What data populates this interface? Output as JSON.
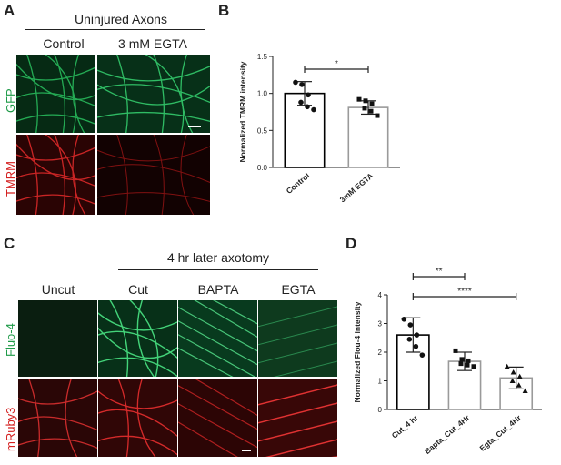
{
  "panelA": {
    "letter": "A",
    "group_title": "Uninjured Axons",
    "col_labels": [
      "Control",
      "3 mM EGTA"
    ],
    "row_labels": [
      "GFP",
      "TMRM"
    ],
    "colors": {
      "green": "#1fbf5a",
      "red": "#ff2a2a"
    }
  },
  "panelB": {
    "letter": "B"
  },
  "panelC": {
    "letter": "C",
    "group_title": "4 hr later axotomy",
    "col_labels": [
      "Uncut",
      "Cut",
      "BAPTA",
      "EGTA"
    ],
    "row_labels": [
      "Fluo-4",
      "mRuby3"
    ]
  },
  "panelD": {
    "letter": "D"
  },
  "chart_data": [
    {
      "type": "bar",
      "categories": [
        "Control",
        "3mM EGTA"
      ],
      "values": [
        1.0,
        0.81
      ],
      "errors": [
        0.16,
        0.09
      ],
      "points": [
        [
          1.15,
          1.12,
          0.98,
          0.88,
          0.82,
          0.78
        ],
        [
          0.92,
          0.9,
          0.86,
          0.8,
          0.76,
          0.7
        ]
      ],
      "ylabel": "Normalized TMRM intensity",
      "ylim": [
        0,
        1.5
      ],
      "yticks": [
        "0.0",
        "0.5",
        "1.0",
        "1.5"
      ],
      "significance": [
        {
          "from": 0,
          "to": 1,
          "label": "*"
        }
      ],
      "bar_colors": [
        "#000000",
        "#9a9a9a"
      ]
    },
    {
      "type": "bar",
      "categories": [
        "Cut_4 hr",
        "Bapta_Cut_4Hr",
        "Egta_Cut_4Hr"
      ],
      "values": [
        2.6,
        1.68,
        1.1
      ],
      "errors": [
        0.6,
        0.32,
        0.38
      ],
      "points": [
        [
          3.15,
          2.95,
          2.6,
          2.45,
          2.2,
          1.9
        ],
        [
          2.05,
          1.75,
          1.7,
          1.6,
          1.55,
          1.5
        ],
        [
          1.5,
          1.3,
          1.15,
          1.0,
          0.85,
          0.65
        ]
      ],
      "ylabel": "Normalized Flou-4 intensity",
      "ylim": [
        0,
        4
      ],
      "yticks": [
        "0",
        "1",
        "2",
        "3",
        "4"
      ],
      "significance": [
        {
          "from": 0,
          "to": 1,
          "label": "**"
        },
        {
          "from": 0,
          "to": 2,
          "label": "****"
        }
      ],
      "bar_colors": [
        "#000000",
        "#9a9a9a",
        "#9a9a9a"
      ]
    }
  ]
}
